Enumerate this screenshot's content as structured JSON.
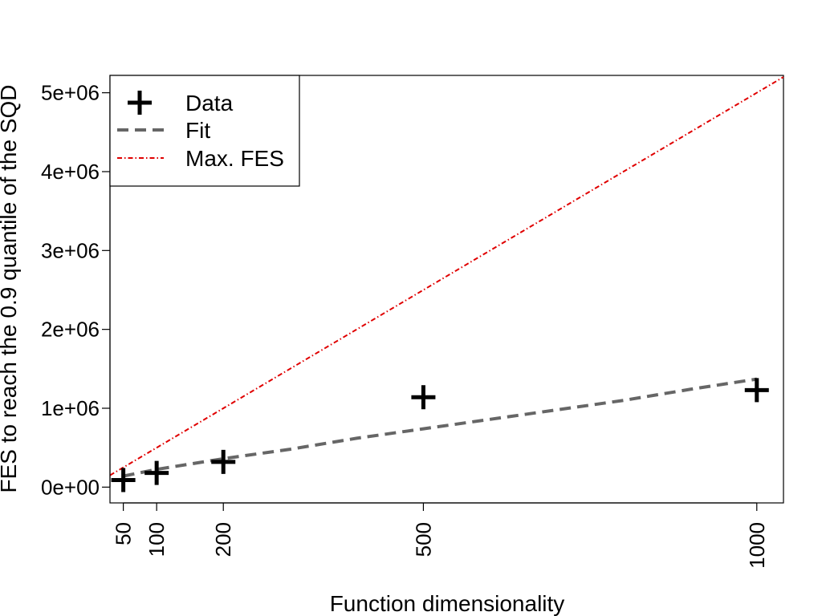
{
  "chart_data": {
    "type": "scatter",
    "xlabel": "Function dimensionality",
    "ylabel": "FES to reach the 0.9 quantile of the SQD",
    "xlim": [
      30,
      1040
    ],
    "ylim": [
      -200000,
      5220000
    ],
    "x_ticks": [
      50,
      100,
      200,
      500,
      1000
    ],
    "x_tick_labels": [
      "50",
      "100",
      "200",
      "500",
      "1000"
    ],
    "y_ticks": [
      0,
      1000000,
      2000000,
      3000000,
      4000000,
      5000000
    ],
    "y_tick_labels": [
      "0e+00",
      "1e+06",
      "2e+06",
      "3e+06",
      "4e+06",
      "5e+06"
    ],
    "grid": false,
    "legend_position": "top-left",
    "series": [
      {
        "name": "Data",
        "kind": "points",
        "marker": "plus",
        "color": "#000000",
        "x": [
          50,
          100,
          200,
          500,
          1000
        ],
        "y": [
          90000,
          180000,
          320000,
          1140000,
          1230000
        ]
      },
      {
        "name": "Fit",
        "kind": "line",
        "style": "dashed",
        "color": "#666666",
        "x": [
          50,
          100,
          200,
          300,
          400,
          500,
          600,
          700,
          800,
          900,
          1000
        ],
        "y": [
          140000,
          225000,
          360000,
          480000,
          620000,
          740000,
          860000,
          980000,
          1100000,
          1240000,
          1370000
        ]
      },
      {
        "name": "Max. FES",
        "kind": "line",
        "style": "dotdash",
        "color": "#e00000",
        "x": [
          30,
          1040
        ],
        "y": [
          150000,
          5200000
        ]
      }
    ]
  }
}
